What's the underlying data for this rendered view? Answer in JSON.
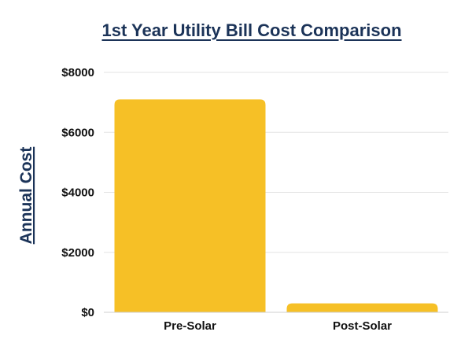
{
  "chart_data": {
    "type": "bar",
    "title": "1st Year Utility Bill Cost Comparison",
    "xlabel": "",
    "ylabel": "Annual Cost",
    "categories": [
      "Pre-Solar",
      "Post-Solar"
    ],
    "values": [
      7100,
      300
    ],
    "ylim": [
      0,
      8000
    ],
    "y_ticks": [
      0,
      2000,
      4000,
      6000,
      8000
    ],
    "y_tick_labels": [
      "$0",
      "$2000",
      "$4000",
      "$6000",
      "$8000"
    ],
    "grid": true,
    "legend": "none",
    "colors": {
      "bar": "#f6c026",
      "title": "#1b3358",
      "grid": "#e3e3e3",
      "axis": "#cfcfcf",
      "text": "#111111"
    }
  }
}
